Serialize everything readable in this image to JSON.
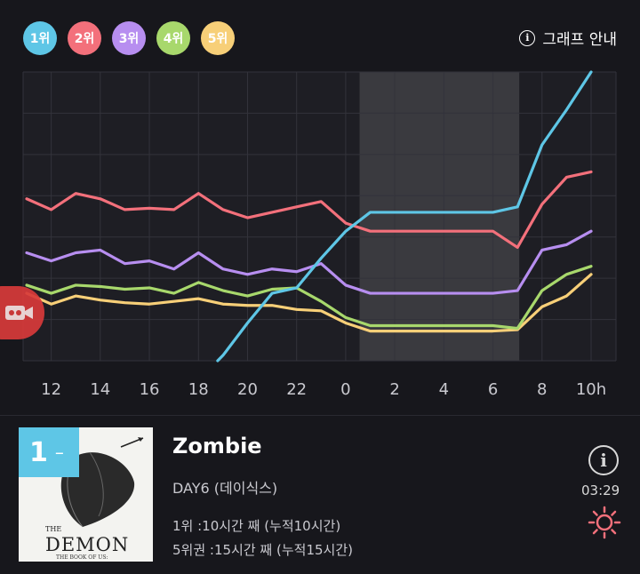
{
  "legend": [
    {
      "label": "1위",
      "color": "#5ec6e6"
    },
    {
      "label": "2위",
      "color": "#f3707b"
    },
    {
      "label": "3위",
      "color": "#b78ef0"
    },
    {
      "label": "4위",
      "color": "#a8d86c"
    },
    {
      "label": "5위",
      "color": "#f7cf78"
    }
  ],
  "guide_label": "그래프 안내",
  "chart_data": {
    "type": "line",
    "x": [
      "11",
      "12",
      "13",
      "14",
      "15",
      "16",
      "17",
      "18",
      "19",
      "20",
      "21",
      "22",
      "23",
      "0",
      "1",
      "2",
      "3",
      "4",
      "5",
      "6",
      "7",
      "8",
      "9",
      "10h"
    ],
    "x_tick_labels": [
      "12",
      "14",
      "16",
      "18",
      "20",
      "22",
      "0",
      "2",
      "4",
      "6",
      "8",
      "10h"
    ],
    "highlight_range": [
      "1",
      "7"
    ],
    "grid": true,
    "series": [
      {
        "color": "#5ec6e6",
        "values": [
          null,
          null,
          null,
          null,
          null,
          null,
          null,
          null,
          7.8,
          6.6,
          5.5,
          5.3,
          4.2,
          3.2,
          2.5,
          2.5,
          2.5,
          2.5,
          2.5,
          2.5,
          2.3,
          0.0,
          -1.3,
          -2.7
        ]
      },
      {
        "color": "#f3707b",
        "values": [
          2.0,
          2.4,
          1.8,
          2.0,
          2.4,
          2.35,
          2.4,
          1.8,
          2.4,
          2.7,
          2.5,
          2.3,
          2.1,
          2.9,
          3.2,
          3.2,
          3.2,
          3.2,
          3.2,
          3.2,
          3.8,
          2.2,
          1.2,
          1.0
        ]
      },
      {
        "color": "#b78ef0",
        "values": [
          4.0,
          4.3,
          4.0,
          3.9,
          4.4,
          4.3,
          4.6,
          4.0,
          4.6,
          4.8,
          4.6,
          4.7,
          4.4,
          5.2,
          5.5,
          5.5,
          5.5,
          5.5,
          5.5,
          5.5,
          5.4,
          3.9,
          3.7,
          3.2
        ]
      },
      {
        "color": "#a8d86c",
        "values": [
          5.2,
          5.5,
          5.2,
          5.25,
          5.35,
          5.3,
          5.5,
          5.1,
          5.4,
          5.6,
          5.35,
          5.3,
          5.8,
          6.4,
          6.7,
          6.7,
          6.7,
          6.7,
          6.7,
          6.7,
          6.8,
          5.4,
          4.8,
          4.5
        ]
      },
      {
        "color": "#f7cf78",
        "values": [
          5.5,
          5.9,
          5.6,
          5.75,
          5.85,
          5.9,
          5.8,
          5.7,
          5.9,
          5.95,
          5.95,
          6.1,
          6.15,
          6.6,
          6.9,
          6.9,
          6.9,
          6.9,
          6.9,
          6.9,
          6.85,
          6.0,
          5.6,
          4.8
        ]
      }
    ]
  },
  "song": {
    "rank": "1",
    "rank_change": "–",
    "title": "Zombie",
    "artist": "DAY6 (데이식스)",
    "stat_first": "1위 :10시간 째 (누적10시간)",
    "stat_top5": "5위권 :15시간 째 (누적15시간)",
    "time": "03:29",
    "album_the": "THE",
    "album_name": "DEMON",
    "album_sub": "THE BOOK OF US:"
  },
  "colors": {
    "bg": "#17171c",
    "plot_bg": "#1e1e24",
    "highlight": "#3a3a3f",
    "accent": "#f3707b"
  }
}
